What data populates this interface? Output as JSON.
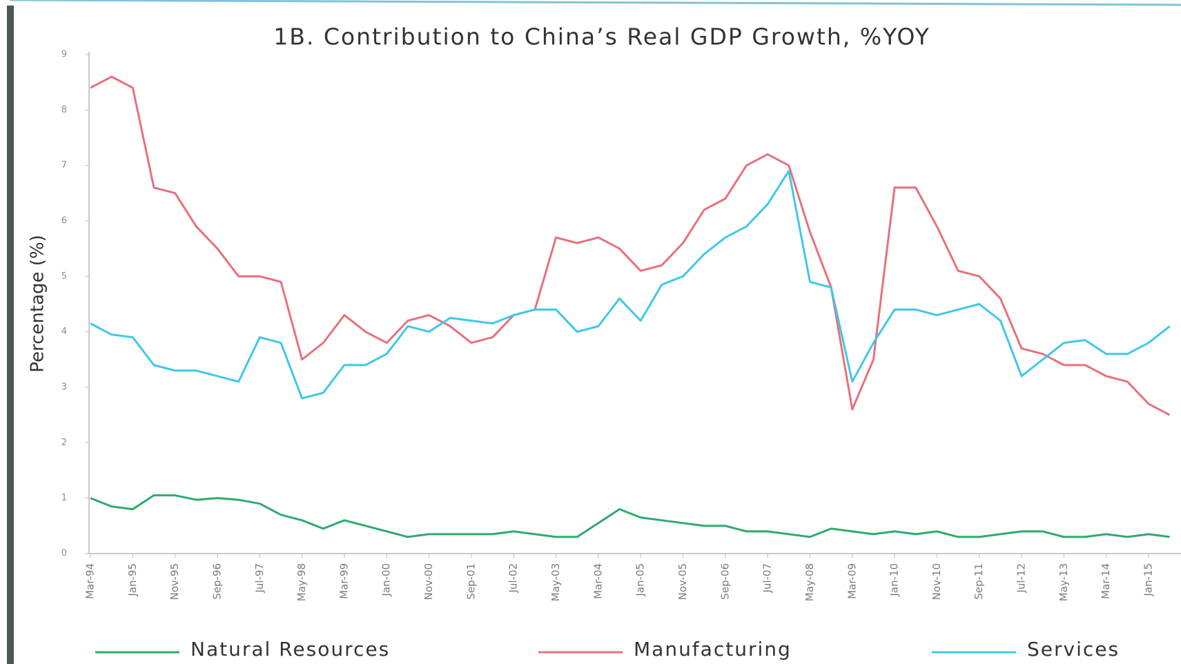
{
  "chart_data": {
    "type": "line",
    "title": "1B. Contribution to China’s Real GDP Growth, %YOY",
    "y_label": "Percentage (%)",
    "categories": [
      "Mar-94",
      null,
      "Jan-95",
      null,
      "Nov-95",
      null,
      "Sep-96",
      null,
      "Jul-97",
      null,
      "May-98",
      null,
      "Mar-99",
      null,
      "Jan-00",
      null,
      "Nov-00",
      null,
      "Sep-01",
      null,
      "Jul-02",
      null,
      "May-03",
      null,
      "Mar-04",
      null,
      "Jan-05",
      null,
      "Nov-05",
      null,
      "Sep-06",
      null,
      "Jul-07",
      null,
      "May-08",
      null,
      "Mar-09",
      null,
      "Jan-10",
      null,
      "Nov-10",
      null,
      "Sep-11",
      null,
      "Jul-12",
      null,
      "May-13",
      null,
      "Mar-14",
      null,
      "Jan-15",
      null
    ],
    "series": [
      {
        "name": "Natural Resources",
        "color": "#2eaa6e",
        "values": [
          1.0,
          0.85,
          0.8,
          1.05,
          1.05,
          0.97,
          1.0,
          0.97,
          0.9,
          0.7,
          0.6,
          0.45,
          0.6,
          0.5,
          0.4,
          0.3,
          0.35,
          0.35,
          0.35,
          0.35,
          0.4,
          0.35,
          0.3,
          0.3,
          0.55,
          0.8,
          0.65,
          0.6,
          0.55,
          0.5,
          0.5,
          0.4,
          0.4,
          0.35,
          0.3,
          0.45,
          0.4,
          0.35,
          0.4,
          0.35,
          0.4,
          0.3,
          0.3,
          0.35,
          0.4,
          0.4,
          0.3,
          0.3,
          0.35,
          0.3,
          0.35,
          0.3
        ]
      },
      {
        "name": "Manufacturing",
        "color": "#e8707a",
        "values": [
          8.4,
          8.6,
          8.4,
          6.6,
          6.5,
          5.9,
          5.5,
          5.0,
          5.0,
          4.9,
          3.5,
          3.8,
          4.3,
          4.0,
          3.8,
          4.2,
          4.3,
          4.1,
          3.8,
          3.9,
          4.3,
          4.4,
          5.7,
          5.6,
          5.7,
          5.5,
          5.1,
          5.2,
          5.6,
          6.2,
          6.4,
          7.0,
          7.2,
          7.0,
          5.8,
          4.8,
          2.6,
          3.5,
          6.6,
          6.6,
          5.9,
          5.1,
          5.0,
          4.6,
          3.7,
          3.6,
          3.4,
          3.4,
          3.2,
          3.1,
          2.7,
          2.5
        ]
      },
      {
        "name": "Services",
        "color": "#3fc8e8",
        "values": [
          4.15,
          3.95,
          3.9,
          3.4,
          3.3,
          3.3,
          3.2,
          3.1,
          3.9,
          3.8,
          2.8,
          2.9,
          3.4,
          3.4,
          3.6,
          4.1,
          4.0,
          4.25,
          4.2,
          4.15,
          4.3,
          4.4,
          4.4,
          4.0,
          4.1,
          4.6,
          4.2,
          4.85,
          5.0,
          5.4,
          5.7,
          5.9,
          6.3,
          6.9,
          4.9,
          4.8,
          3.1,
          3.8,
          4.4,
          4.4,
          4.3,
          4.4,
          4.5,
          4.2,
          3.2,
          3.5,
          3.8,
          3.85,
          3.6,
          3.6,
          3.8,
          4.1
        ]
      }
    ],
    "ylim": [
      0,
      9
    ],
    "yticks": [
      0,
      1,
      2,
      3,
      4,
      5,
      6,
      7,
      8,
      9
    ]
  }
}
